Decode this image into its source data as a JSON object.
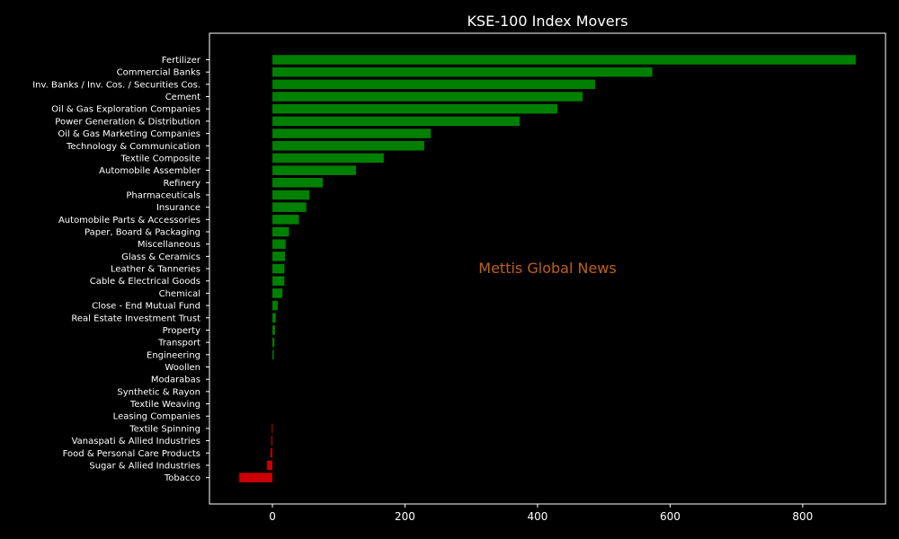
{
  "chart_data": {
    "type": "bar",
    "orientation": "horizontal",
    "title": "KSE-100 Index Movers",
    "watermark": "Mettis Global News",
    "xlabel": "",
    "ylabel": "",
    "xlim": [
      -95,
      925
    ],
    "xticks": [
      0,
      200,
      400,
      600,
      800
    ],
    "grid": false,
    "colors": {
      "positive": "#008000",
      "negative": "#cc0000",
      "background": "#000000",
      "text": "#ffffff",
      "watermark": "#c0601c"
    },
    "categories": [
      "Fertilizer",
      "Commercial Banks",
      "Inv. Banks / Inv. Cos. / Securities Cos.",
      "Cement",
      "Oil & Gas Exploration Companies",
      "Power Generation & Distribution",
      "Oil & Gas Marketing Companies",
      "Technology & Communication",
      "Textile Composite",
      "Automobile Assembler",
      "Refinery",
      "Pharmaceuticals",
      "Insurance",
      "Automobile Parts & Accessories",
      "Paper, Board & Packaging",
      "Miscellaneous",
      "Glass & Ceramics",
      "Leather & Tanneries",
      "Cable & Electrical Goods",
      "Chemical",
      "Close - End Mutual Fund",
      "Real Estate Investment Trust",
      "Property",
      "Transport",
      "Engineering",
      "Woollen",
      "Modarabas",
      "Synthetic & Rayon",
      "Textile Weaving",
      "Leasing Companies",
      "Textile Spinning",
      "Vanaspati & Allied Industries",
      "Food & Personal Care Products",
      "Sugar & Allied Industries",
      "Tobacco"
    ],
    "values": [
      880,
      573,
      487,
      468,
      430,
      373,
      239,
      229,
      168,
      126,
      76,
      56,
      51,
      40,
      25,
      20,
      19,
      18,
      18,
      15,
      8,
      5,
      4,
      3,
      2,
      0,
      0,
      0,
      0,
      0,
      -1,
      -1.5,
      -2.5,
      -8,
      -50
    ]
  }
}
